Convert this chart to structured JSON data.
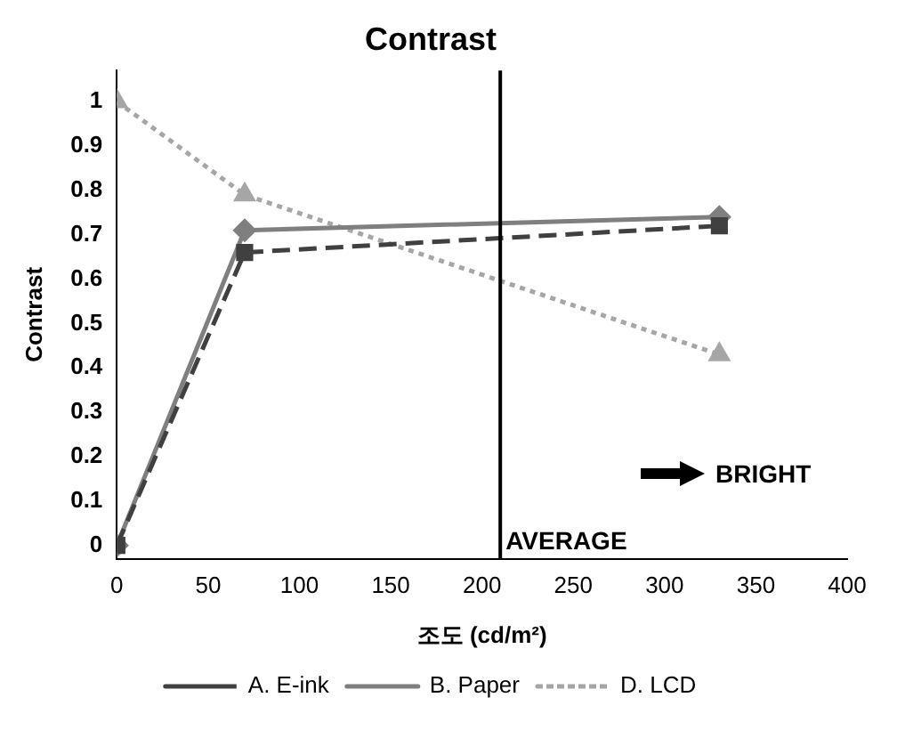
{
  "chart_data": {
    "type": "line",
    "title": "Contrast",
    "xlabel": "조도 (cd/m²)",
    "ylabel": "Contrast",
    "xlim": [
      0,
      400
    ],
    "xticks": [
      0,
      50,
      100,
      150,
      200,
      250,
      300,
      350,
      400
    ],
    "ylim": [
      -0.03,
      1.07
    ],
    "yticks": [
      0,
      0.1,
      0.2,
      0.3,
      0.4,
      0.5,
      0.6,
      0.7,
      0.8,
      0.9,
      1
    ],
    "grid": false,
    "legend": "bottom",
    "series": [
      {
        "name": "A. E-ink",
        "color": "#404040",
        "x": [
          0,
          70,
          330
        ],
        "values": [
          0,
          0.66,
          0.72
        ],
        "marker": "square",
        "line_style": "dashed"
      },
      {
        "name": "B. Paper",
        "color": "#7f7f7f",
        "x": [
          0,
          70,
          330
        ],
        "values": [
          0,
          0.71,
          0.74
        ],
        "marker": "diamond",
        "line_style": "solid"
      },
      {
        "name": "D. LCD",
        "color": "#a6a6a6",
        "x": [
          0,
          70,
          330
        ],
        "values": [
          1,
          0.79,
          0.43
        ],
        "marker": "triangle",
        "line_style": "dotted"
      }
    ],
    "ref_lines": [
      {
        "axis": "x",
        "value": 210,
        "label": "AVERAGE",
        "color": "#000000"
      }
    ],
    "annotations": [
      "BRIGHT"
    ]
  }
}
